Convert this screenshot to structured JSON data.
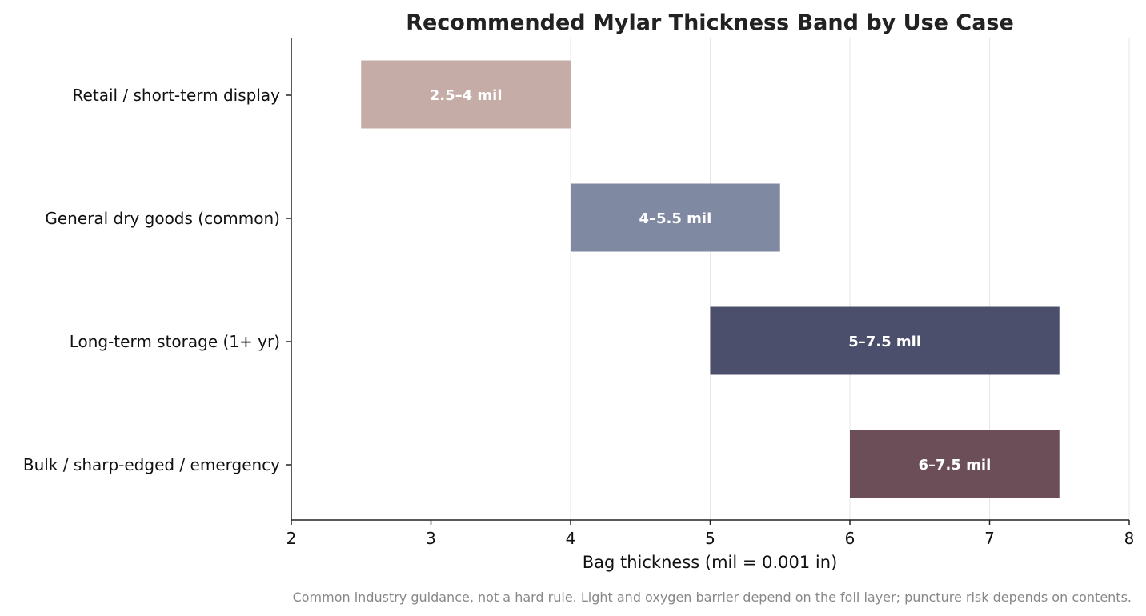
{
  "chart_data": {
    "type": "bar",
    "orientation": "horizontal",
    "title": "Recommended Mylar Thickness Band by Use Case",
    "xlabel": "Bag thickness (mil = 0.001 in)",
    "ylabel": "",
    "xlim": [
      2,
      8
    ],
    "xticks": [
      2,
      3,
      4,
      5,
      6,
      7,
      8
    ],
    "grid": "vertical",
    "categories": [
      "Retail / short-term display",
      "General dry goods (common)",
      "Long-term storage (1+ yr)",
      "Bulk / sharp-edged / emergency"
    ],
    "ranges": [
      {
        "start": 2.5,
        "end": 4.0,
        "label": "2.5–4 mil",
        "color": "#c6aca6"
      },
      {
        "start": 4.0,
        "end": 5.5,
        "label": "4–5.5 mil",
        "color": "#7f8aa2"
      },
      {
        "start": 5.0,
        "end": 7.5,
        "label": "5–7.5 mil",
        "color": "#4b4f6b"
      },
      {
        "start": 6.0,
        "end": 7.5,
        "label": "6–7.5 mil",
        "color": "#6c4e58"
      }
    ],
    "footnote": "Common industry guidance, not a hard rule. Light and oxygen barrier depend on the foil layer; puncture risk depends on contents."
  }
}
